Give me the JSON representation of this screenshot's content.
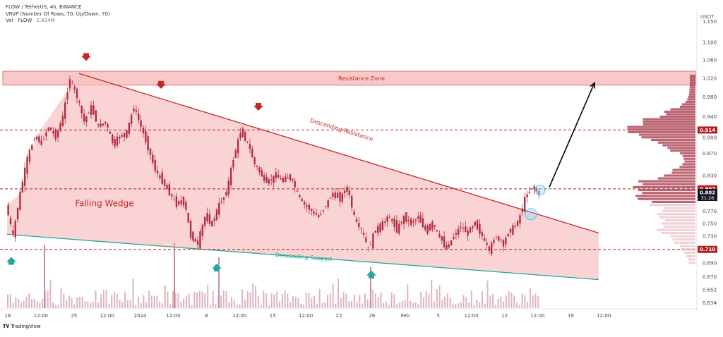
{
  "header": {
    "symbol_line": "FLOW / TetherUS, 4h, BINANCE",
    "vrvp_line": "VRVP (Number Of Rows, 70, Up/Down, 70)",
    "vol_label": "Vol · FLOW",
    "vol_value": "1.834M"
  },
  "footer": {
    "brand": "TradingView"
  },
  "price_axis": {
    "currency": "USDT"
  },
  "chart_data": {
    "type": "candlestick",
    "symbol": "FLOW / TetherUS",
    "interval": "4h",
    "exchange": "BINANCE",
    "x_tick_labels": [
      "18",
      "12:00",
      "25",
      "12:00",
      "2024",
      "12:00",
      "8",
      "12:00",
      "15",
      "12:00",
      "22",
      "26",
      "Feb",
      "5",
      "12:00",
      "12",
      "12:00",
      "19",
      "12:00"
    ],
    "y_tick_labels": [
      "1.150",
      "1.100",
      "1.060",
      "1.020",
      "0.980",
      "0.940",
      "0.900",
      "0.870",
      "0.830",
      "0.800",
      "0.770",
      "0.750",
      "0.730",
      "0.710",
      "0.690",
      "0.670",
      "0.652",
      "0.634"
    ],
    "y_axis_scale": "log",
    "ylim": [
      0.625,
      1.2
    ],
    "price_path": [
      0.78,
      0.73,
      0.8,
      0.86,
      0.9,
      0.89,
      0.92,
      0.9,
      0.94,
      1.02,
      0.98,
      0.93,
      0.96,
      0.92,
      0.93,
      0.89,
      0.9,
      0.91,
      0.96,
      0.92,
      0.88,
      0.84,
      0.82,
      0.8,
      0.78,
      0.79,
      0.73,
      0.72,
      0.76,
      0.75,
      0.78,
      0.8,
      0.86,
      0.91,
      0.89,
      0.85,
      0.83,
      0.82,
      0.83,
      0.82,
      0.83,
      0.8,
      0.78,
      0.77,
      0.76,
      0.78,
      0.8,
      0.79,
      0.81,
      0.76,
      0.74,
      0.71,
      0.74,
      0.75,
      0.76,
      0.74,
      0.76,
      0.75,
      0.76,
      0.74,
      0.75,
      0.73,
      0.71,
      0.73,
      0.745,
      0.735,
      0.75,
      0.73,
      0.71,
      0.73,
      0.72,
      0.74,
      0.75,
      0.79,
      0.81,
      0.8
    ],
    "horizontal_levels": [
      {
        "price": 0.914,
        "label": "0.914",
        "color": "#b71c1c"
      },
      {
        "price": 0.807,
        "label": "0.807",
        "color": "#b71c1c"
      },
      {
        "price": 0.71,
        "label": "0.710",
        "color": "#b71c1c"
      }
    ],
    "current_price": {
      "price": 0.802,
      "label": "0.802",
      "countdown": "31:26"
    },
    "resistance_zone": {
      "label": "Resistance Zone",
      "range": [
        1.005,
        1.035
      ],
      "color": "#ef9a9a"
    },
    "wedge": {
      "label": "Falling Wedge",
      "resistance_label": "Descending Resistance",
      "support_label": "Descending Support",
      "resistance_color": "#c62828",
      "support_color": "#26a69a",
      "fill_color": "#f8c7c7"
    },
    "projection": {
      "target_price": 1.01,
      "color": "#000000"
    },
    "candle_colors": {
      "up": "#b22c3f",
      "down": "#b22c3f"
    },
    "marker_colors": {
      "top": "#c62828",
      "bottom": "#26a69a"
    },
    "volume_profile_color": "#b04a5a"
  }
}
